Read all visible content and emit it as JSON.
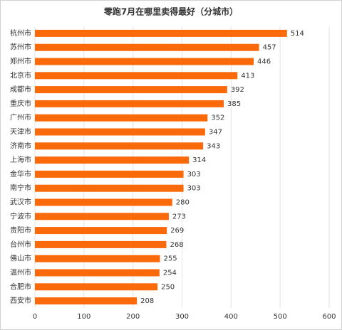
{
  "chart_data": {
    "type": "bar",
    "orientation": "horizontal",
    "title": "零跑7月在哪里卖得最好（分城市）",
    "categories": [
      "杭州市",
      "苏州市",
      "郑州市",
      "北京市",
      "成都市",
      "重庆市",
      "广州市",
      "天津市",
      "济南市",
      "上海市",
      "金华市",
      "南宁市",
      "武汉市",
      "宁波市",
      "贵阳市",
      "台州市",
      "佛山市",
      "温州市",
      "合肥市",
      "西安市"
    ],
    "values": [
      514,
      457,
      446,
      413,
      392,
      385,
      352,
      347,
      343,
      314,
      303,
      303,
      280,
      273,
      269,
      268,
      255,
      254,
      250,
      208
    ],
    "color": "#fa6a0a",
    "xlim": [
      0,
      600
    ],
    "xticks": [
      0,
      100,
      200,
      300,
      400,
      500,
      600
    ],
    "grid": true
  }
}
